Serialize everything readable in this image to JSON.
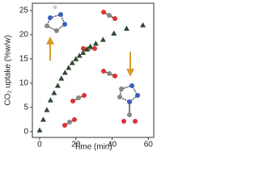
{
  "chart_data": {
    "type": "scatter",
    "x_label": "Time (min)",
    "y_label": "CO₂ uptake (%w/w)",
    "series": [
      {
        "color": "#2f4a2f",
        "x": [
          0,
          2,
          4,
          6,
          8,
          10,
          12,
          14,
          16,
          18,
          20,
          22,
          24,
          26,
          28,
          31,
          35,
          41,
          48,
          57
        ],
        "values": [
          0.3,
          2.5,
          4.5,
          6.5,
          8,
          9.5,
          11,
          12.2,
          13.2,
          14.2,
          15,
          15.7,
          16.3,
          17,
          17.6,
          18.2,
          19,
          20.3,
          21.3,
          22
        ]
      }
    ],
    "xlim": [
      -4,
      63
    ],
    "ylim": [
      -1.2,
      26.5
    ],
    "xticks": [
      0,
      20,
      40,
      60
    ],
    "yticks": [
      0,
      5,
      10,
      15,
      20,
      25
    ]
  }
}
